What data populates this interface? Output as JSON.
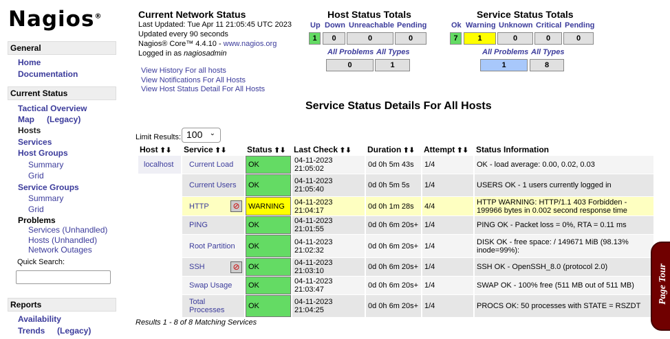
{
  "logo": "Nagios",
  "sidebar": {
    "general": "General",
    "home": "Home",
    "documentation": "Documentation",
    "current_status": "Current Status",
    "tactical": "Tactical Overview",
    "map": "Map",
    "legacy": "(Legacy)",
    "hosts": "Hosts",
    "services": "Services",
    "host_groups": "Host Groups",
    "summary": "Summary",
    "grid": "Grid",
    "service_groups": "Service Groups",
    "problems": "Problems",
    "p_services": "Services",
    "unhandled": "(Unhandled)",
    "p_hosts": "Hosts",
    "network_outages": "Network Outages",
    "quick_search": "Quick Search:",
    "quick_search_value": "",
    "reports": "Reports",
    "availability": "Availability",
    "trends": "Trends"
  },
  "status": {
    "title": "Current Network Status",
    "last_updated": "Last Updated: Tue Apr 11 21:05:45 UTC 2023",
    "interval": "Updated every 90 seconds",
    "version": "Nagios® Core™ 4.4.10 - ",
    "site": "www.nagios.org",
    "logged_in": "Logged in as ",
    "user": "nagiosadmin"
  },
  "links": [
    "View History For all hosts",
    "View Notifications For All Hosts",
    "View Host Status Detail For All Hosts"
  ],
  "host_totals": {
    "title": "Host Status Totals",
    "labels": [
      "Up",
      "Down",
      "Unreachable",
      "Pending"
    ],
    "values": [
      "1",
      "0",
      "0",
      "0"
    ],
    "all_problems": "All Problems",
    "all_types": "All Types",
    "problems": "0",
    "types": "1"
  },
  "service_totals": {
    "title": "Service Status Totals",
    "labels": [
      "Ok",
      "Warning",
      "Unknown",
      "Critical",
      "Pending"
    ],
    "values": [
      "7",
      "1",
      "0",
      "0",
      "0"
    ],
    "all_problems": "All Problems",
    "all_types": "All Types",
    "problems": "1",
    "types": "8"
  },
  "colors": {
    "ok": "#64db64",
    "warning": "#ffff00",
    "problems": "#a8c8fb",
    "link": "#3b3b9b"
  },
  "page_title": "Service Status Details For All Hosts",
  "limit_label": "Limit Results:",
  "limit_value": "100",
  "columns": [
    "Host",
    "Service",
    "Status",
    "Last Check",
    "Duration",
    "Attempt",
    "Status Information"
  ],
  "rows": [
    {
      "host": "localhost",
      "service": "Current Load",
      "status": "OK",
      "last_check": "04-11-2023 21:05:02",
      "duration": "0d 0h 5m 43s",
      "attempt": "1/4",
      "info": "OK - load average: 0.00, 0.02, 0.03"
    },
    {
      "host": "",
      "service": "Current Users",
      "status": "OK",
      "last_check": "04-11-2023 21:05:40",
      "duration": "0d 0h 5m 5s",
      "attempt": "1/4",
      "info": "USERS OK - 1 users currently logged in"
    },
    {
      "host": "",
      "service": "HTTP",
      "status": "WARNING",
      "last_check": "04-11-2023 21:04:17",
      "duration": "0d 0h 1m 28s",
      "attempt": "4/4",
      "info": "HTTP WARNING: HTTP/1.1 403 Forbidden - 199966 bytes in 0.002 second response time",
      "notifications_disabled": true
    },
    {
      "host": "",
      "service": "PING",
      "status": "OK",
      "last_check": "04-11-2023 21:01:55",
      "duration": "0d 0h 6m 20s+",
      "attempt": "1/4",
      "info": "PING OK - Packet loss = 0%, RTA = 0.11 ms"
    },
    {
      "host": "",
      "service": "Root Partition",
      "status": "OK",
      "last_check": "04-11-2023 21:02:32",
      "duration": "0d 0h 6m 20s+",
      "attempt": "1/4",
      "info": "DISK OK - free space: / 149671 MiB (98.13% inode=99%):"
    },
    {
      "host": "",
      "service": "SSH",
      "status": "OK",
      "last_check": "04-11-2023 21:03:10",
      "duration": "0d 0h 6m 20s+",
      "attempt": "1/4",
      "info": "SSH OK - OpenSSH_8.0 (protocol 2.0)",
      "notifications_disabled": true
    },
    {
      "host": "",
      "service": "Swap Usage",
      "status": "OK",
      "last_check": "04-11-2023 21:03:47",
      "duration": "0d 0h 6m 20s+",
      "attempt": "1/4",
      "info": "SWAP OK - 100% free (511 MB out of 511 MB)"
    },
    {
      "host": "",
      "service": "Total Processes",
      "status": "OK",
      "last_check": "04-11-2023 21:04:25",
      "duration": "0d 0h 6m 20s+",
      "attempt": "1/4",
      "info": "PROCS OK: 50 processes with STATE = RSZDT"
    }
  ],
  "results": "Results 1 - 8 of 8 Matching Services",
  "page_tour": "Page Tour"
}
